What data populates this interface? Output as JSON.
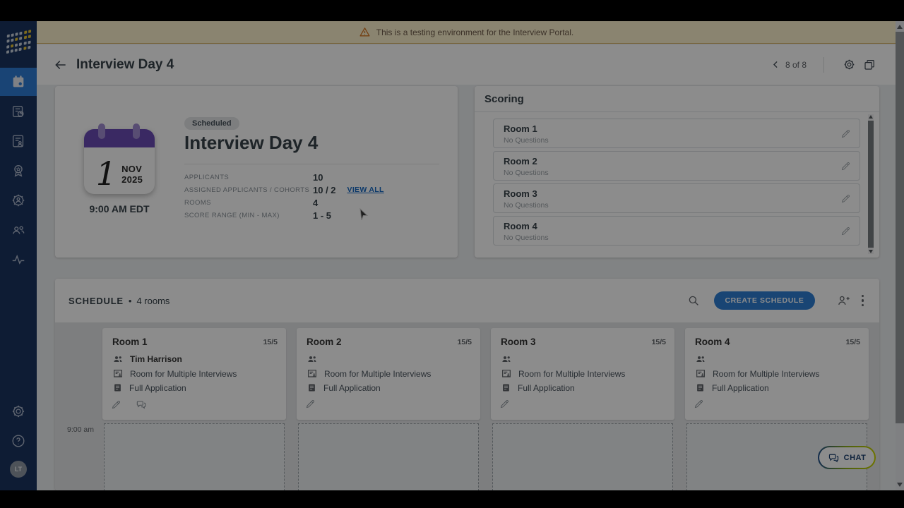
{
  "banner": {
    "text": "This is a testing environment for the Interview Portal."
  },
  "header": {
    "title": "Interview Day 4",
    "pagination": "8 of 8"
  },
  "overview": {
    "status_badge": "Scheduled",
    "title": "Interview Day 4",
    "calendar": {
      "day": "1",
      "month": "NOV",
      "year": "2025"
    },
    "time": "9:00 AM EDT",
    "details": {
      "applicants_label": "APPLICANTS",
      "applicants_value": "10",
      "assigned_label": "ASSIGNED APPLICANTS / COHORTS",
      "assigned_value": "10 / 2",
      "assigned_link": "VIEW ALL",
      "rooms_label": "ROOMS",
      "rooms_value": "4",
      "score_label": "SCORE RANGE (MIN - MAX)",
      "score_value": "1 - 5"
    }
  },
  "scoring": {
    "title": "Scoring",
    "rooms": [
      {
        "name": "Room 1",
        "status": "No Questions"
      },
      {
        "name": "Room 2",
        "status": "No Questions"
      },
      {
        "name": "Room 3",
        "status": "No Questions"
      },
      {
        "name": "Room 4",
        "status": "No Questions"
      }
    ]
  },
  "schedule": {
    "title": "SCHEDULE",
    "separator": "•",
    "room_count": "4 rooms",
    "create_button": "CREATE SCHEDULE",
    "time_label": "9:00 am",
    "rooms": [
      {
        "name": "Room 1",
        "capacity": "15/5",
        "interviewer": "Tim Harrison",
        "room_type": "Room for Multiple Interviews",
        "application": "Full Application"
      },
      {
        "name": "Room 2",
        "capacity": "15/5",
        "interviewer": "",
        "room_type": "Room for Multiple Interviews",
        "application": "Full Application"
      },
      {
        "name": "Room 3",
        "capacity": "15/5",
        "interviewer": "",
        "room_type": "Room for Multiple Interviews",
        "application": "Full Application"
      },
      {
        "name": "Room 4",
        "capacity": "15/5",
        "interviewer": "",
        "room_type": "Room for Multiple Interviews",
        "application": "Full Application"
      }
    ]
  },
  "chat_button": {
    "label": "CHAT"
  },
  "sidebar": {
    "avatar_initials": "LT"
  },
  "colors": {
    "sidebar_navy": "#1a3360",
    "active_blue": "#2e7cd6",
    "primary_button_blue": "#2e7fd4",
    "calendar_purple": "#6a4bb5",
    "warning_banner_bg": "#fbf1cd",
    "warning_icon": "#d4731f",
    "link_blue": "#1769c2",
    "chat_gradient_start": "#1f4e8c",
    "chat_gradient_end": "#c9d400"
  }
}
